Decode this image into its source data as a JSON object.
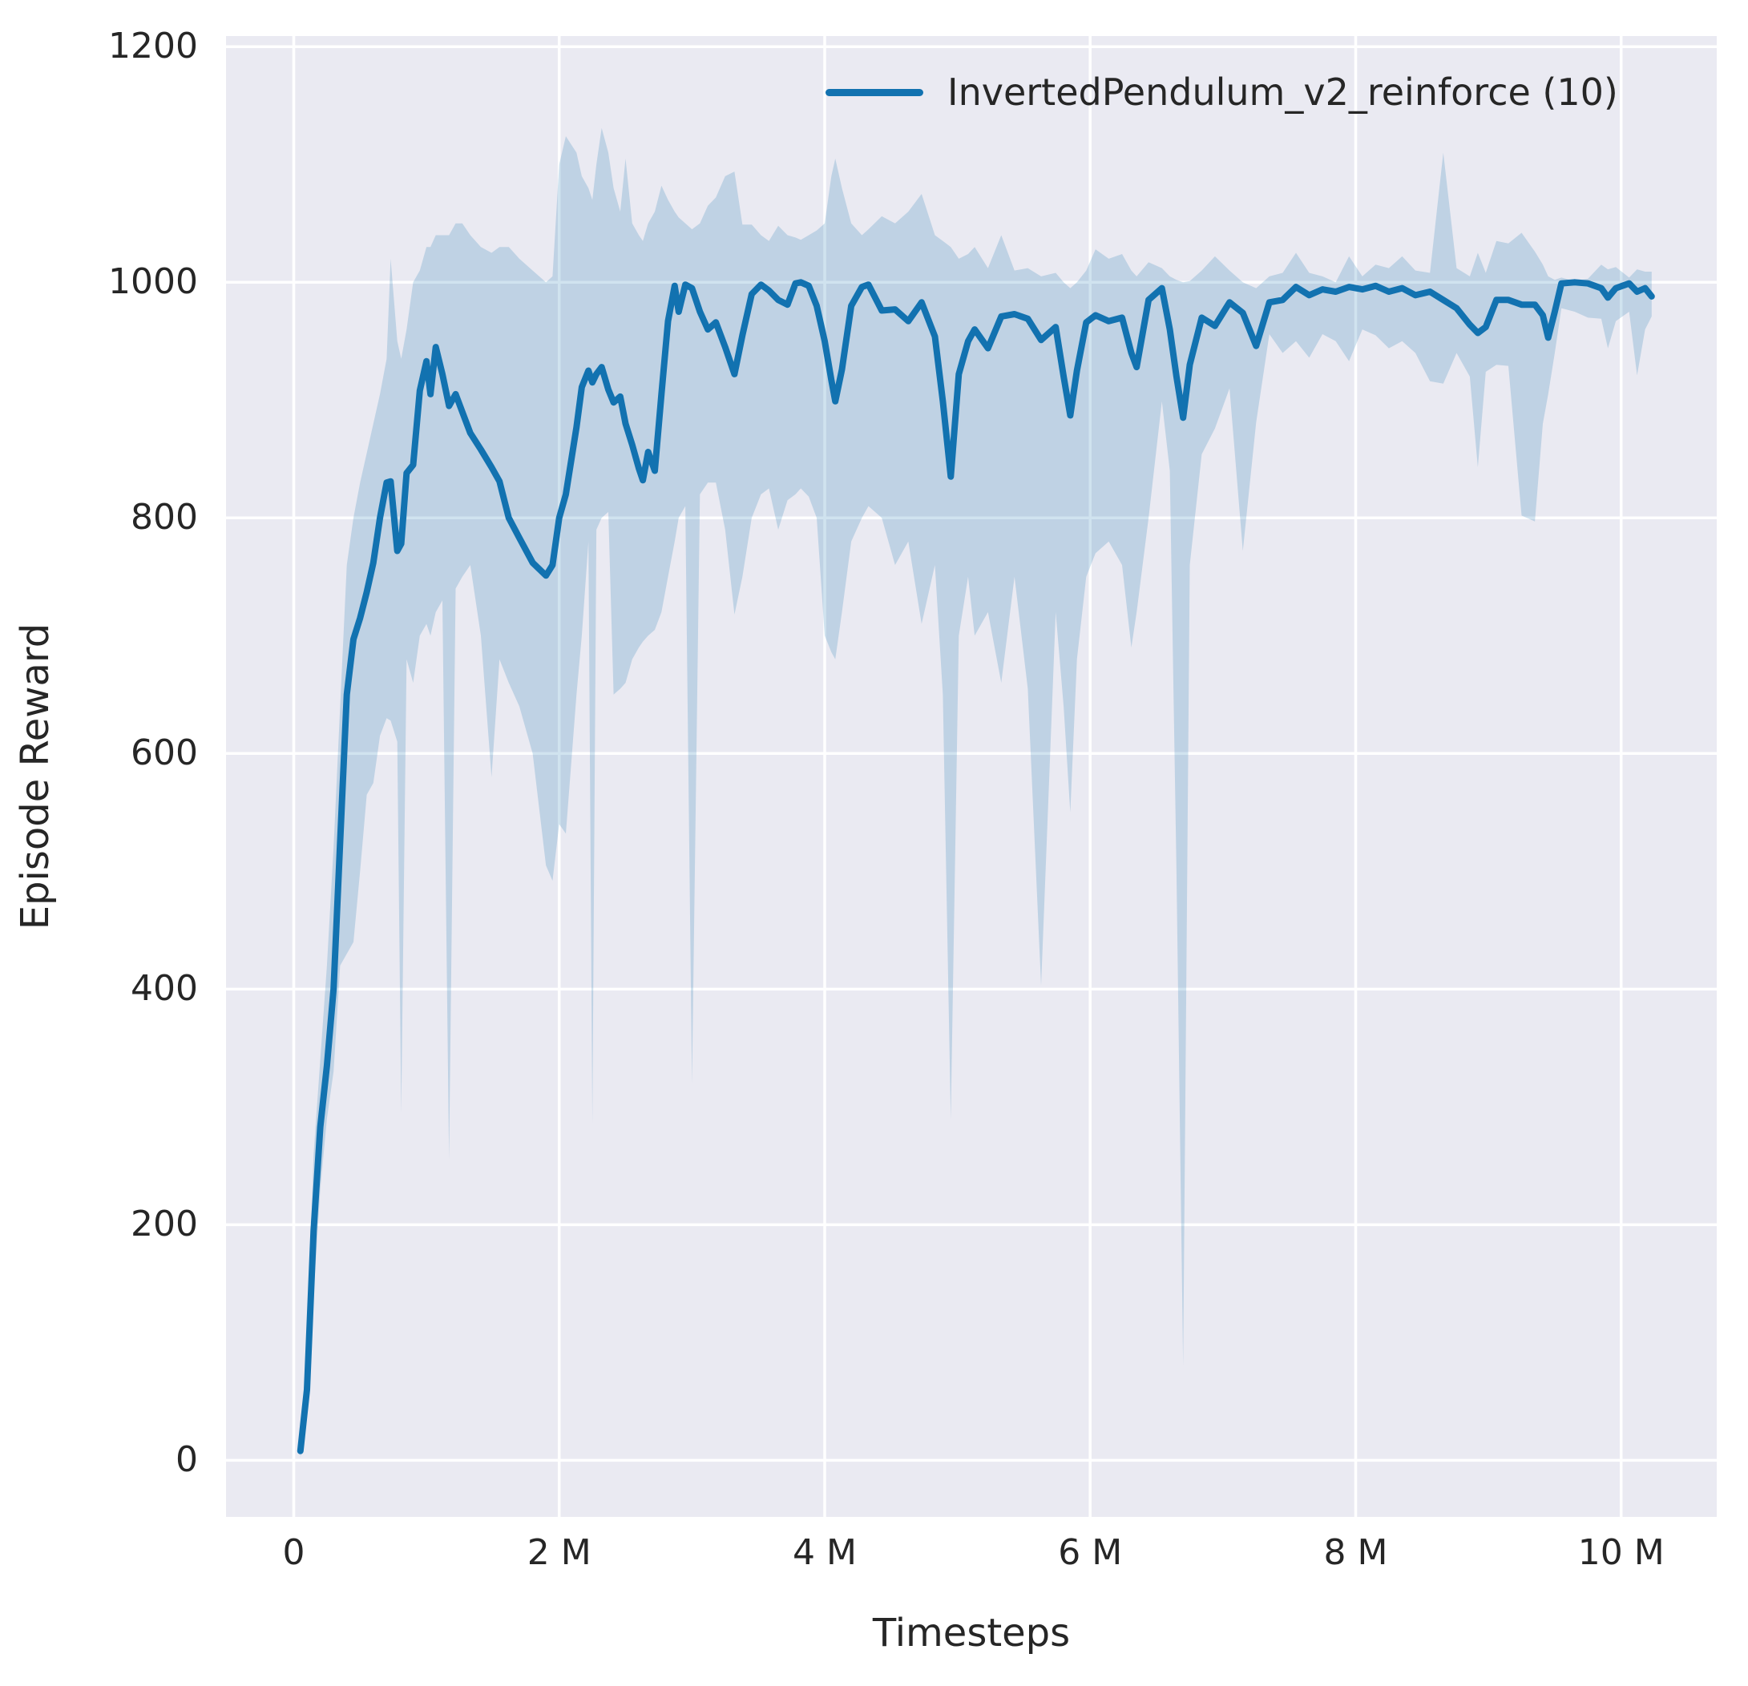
{
  "chart_data": {
    "type": "line",
    "title": "",
    "xlabel": "Timesteps",
    "ylabel": "Episode Reward",
    "grid": true,
    "legend_position": "upper right",
    "legend": {
      "label": "InvertedPendulum_v2_reinforce (10)"
    },
    "style": {
      "axes_background": "#eaeaf2",
      "figure_background": "#ffffff",
      "grid_color": "#ffffff",
      "line_color": "#1272b0",
      "band_color": "#1272b0",
      "band_opacity": 0.2,
      "text_color": "#262626",
      "line_width": 8
    },
    "xlim": [
      -0.51,
      10.72
    ],
    "ylim": [
      -48,
      1209
    ],
    "x_unit": "millions of timesteps",
    "x_ticks": [
      {
        "value": 0,
        "label": "0"
      },
      {
        "value": 2,
        "label": "2 M"
      },
      {
        "value": 4,
        "label": "4 M"
      },
      {
        "value": 6,
        "label": "6 M"
      },
      {
        "value": 8,
        "label": "8 M"
      },
      {
        "value": 10,
        "label": "10 M"
      }
    ],
    "y_ticks": [
      {
        "value": 0,
        "label": "0"
      },
      {
        "value": 200,
        "label": "200"
      },
      {
        "value": 400,
        "label": "400"
      },
      {
        "value": 600,
        "label": "600"
      },
      {
        "value": 800,
        "label": "800"
      },
      {
        "value": 1000,
        "label": "1000"
      },
      {
        "value": 1200,
        "label": "1200"
      }
    ],
    "series": [
      {
        "name": "InvertedPendulum_v2_reinforce (10)",
        "x": [
          0.05,
          0.1,
          0.15,
          0.2,
          0.25,
          0.3,
          0.35,
          0.4,
          0.45,
          0.5,
          0.55,
          0.6,
          0.65,
          0.7,
          0.73,
          0.78,
          0.81,
          0.85,
          0.9,
          0.95,
          1.0,
          1.03,
          1.07,
          1.12,
          1.17,
          1.22,
          1.27,
          1.33,
          1.41,
          1.49,
          1.55,
          1.62,
          1.7,
          1.8,
          1.9,
          1.95,
          2.0,
          2.05,
          2.13,
          2.17,
          2.22,
          2.25,
          2.28,
          2.32,
          2.37,
          2.41,
          2.46,
          2.5,
          2.55,
          2.6,
          2.63,
          2.67,
          2.72,
          2.77,
          2.82,
          2.87,
          2.9,
          2.95,
          3.0,
          3.06,
          3.12,
          3.18,
          3.25,
          3.32,
          3.38,
          3.45,
          3.52,
          3.58,
          3.65,
          3.72,
          3.78,
          3.82,
          3.88,
          3.94,
          4.0,
          4.05,
          4.08,
          4.13,
          4.2,
          4.28,
          4.33,
          4.43,
          4.53,
          4.63,
          4.73,
          4.83,
          4.89,
          4.95,
          5.01,
          5.08,
          5.13,
          5.23,
          5.33,
          5.43,
          5.53,
          5.63,
          5.74,
          5.8,
          5.85,
          5.9,
          5.97,
          6.04,
          6.14,
          6.24,
          6.31,
          6.35,
          6.44,
          6.54,
          6.6,
          6.65,
          6.7,
          6.75,
          6.84,
          6.94,
          7.05,
          7.15,
          7.25,
          7.35,
          7.45,
          7.55,
          7.65,
          7.75,
          7.85,
          7.95,
          8.05,
          8.15,
          8.25,
          8.35,
          8.45,
          8.56,
          8.66,
          8.76,
          8.86,
          8.92,
          8.98,
          9.06,
          9.15,
          9.25,
          9.35,
          9.41,
          9.45,
          9.5,
          9.55,
          9.65,
          9.75,
          9.85,
          9.9,
          9.96,
          10.06,
          10.12,
          10.18,
          10.23
        ],
        "mean": [
          8,
          60,
          195,
          283,
          335,
          400,
          525,
          650,
          697,
          715,
          737,
          762,
          800,
          830,
          831,
          772,
          778,
          838,
          845,
          908,
          933,
          905,
          945,
          922,
          895,
          905,
          890,
          872,
          858,
          843,
          831,
          800,
          783,
          762,
          751,
          760,
          800,
          820,
          877,
          911,
          925,
          915,
          922,
          928,
          909,
          898,
          903,
          880,
          862,
          842,
          832,
          856,
          840,
          905,
          967,
          997,
          975,
          998,
          995,
          975,
          960,
          966,
          945,
          922,
          955,
          990,
          998,
          993,
          985,
          981,
          999,
          1000,
          997,
          980,
          950,
          917,
          899,
          926,
          980,
          996,
          998,
          976,
          977,
          967,
          983,
          954,
          899,
          835,
          922,
          950,
          960,
          944,
          971,
          973,
          969,
          951,
          962,
          920,
          887,
          925,
          966,
          972,
          967,
          970,
          940,
          928,
          985,
          995,
          960,
          920,
          885,
          930,
          970,
          963,
          983,
          974,
          946,
          983,
          985,
          996,
          989,
          994,
          992,
          996,
          994,
          997,
          992,
          995,
          989,
          992,
          985,
          978,
          964,
          957,
          962,
          985,
          985,
          981,
          981,
          972,
          953,
          975,
          999,
          1000,
          999,
          995,
          987,
          995,
          999,
          992,
          995,
          988
        ],
        "band_lower": [
          2,
          35,
          140,
          230,
          290,
          330,
          420,
          430,
          440,
          500,
          565,
          575,
          615,
          630,
          628,
          610,
          295,
          680,
          660,
          700,
          710,
          700,
          720,
          730,
          255,
          740,
          750,
          760,
          700,
          580,
          680,
          660,
          640,
          600,
          505,
          492,
          540,
          532,
          650,
          700,
          780,
          285,
          790,
          800,
          805,
          650,
          655,
          660,
          680,
          690,
          695,
          700,
          705,
          720,
          750,
          780,
          800,
          810,
          320,
          820,
          830,
          830,
          790,
          718,
          750,
          800,
          820,
          825,
          790,
          815,
          820,
          825,
          818,
          800,
          700,
          686,
          680,
          720,
          780,
          800,
          810,
          800,
          760,
          780,
          710,
          760,
          650,
          290,
          700,
          750,
          700,
          720,
          660,
          750,
          655,
          403,
          720,
          640,
          550,
          680,
          750,
          770,
          780,
          760,
          690,
          720,
          800,
          899,
          840,
          500,
          80,
          760,
          854,
          876,
          910,
          772,
          881,
          956,
          940,
          950,
          936,
          956,
          950,
          933,
          960,
          955,
          944,
          950,
          940,
          916,
          914,
          940,
          920,
          843,
          924,
          930,
          929,
          802,
          797,
          880,
          905,
          940,
          978,
          975,
          970,
          969,
          944,
          967,
          975,
          921,
          960,
          971
        ],
        "band_upper": [
          20,
          95,
          260,
          340,
          420,
          520,
          640,
          760,
          800,
          830,
          855,
          880,
          905,
          935,
          1020,
          950,
          935,
          960,
          1000,
          1010,
          1030,
          1030,
          1040,
          1040,
          1040,
          1050,
          1050,
          1040,
          1030,
          1025,
          1030,
          1030,
          1020,
          1010,
          1000,
          1005,
          1100,
          1124,
          1110,
          1090,
          1080,
          1070,
          1100,
          1131,
          1110,
          1080,
          1060,
          1105,
          1050,
          1040,
          1035,
          1050,
          1060,
          1082,
          1070,
          1060,
          1055,
          1050,
          1045,
          1050,
          1065,
          1072,
          1090,
          1094,
          1049,
          1049,
          1040,
          1035,
          1048,
          1040,
          1038,
          1036,
          1040,
          1044,
          1050,
          1090,
          1105,
          1080,
          1050,
          1040,
          1045,
          1056,
          1050,
          1060,
          1075,
          1040,
          1035,
          1030,
          1020,
          1024,
          1030,
          1012,
          1040,
          1010,
          1012,
          1005,
          1008,
          1000,
          995,
          1000,
          1010,
          1028,
          1020,
          1024,
          1010,
          1005,
          1017,
          1012,
          1005,
          1002,
          1000,
          1001,
          1010,
          1022,
          1010,
          1000,
          995,
          1005,
          1008,
          1025,
          1008,
          1005,
          1000,
          1022,
          1005,
          1015,
          1012,
          1022,
          1010,
          1008,
          1110,
          1012,
          1005,
          1025,
          1008,
          1035,
          1033,
          1042,
          1026,
          1015,
          1005,
          1002,
          1004,
          1001,
          1003,
          1015,
          1011,
          1013,
          1004,
          1011,
          1009,
          1009
        ]
      }
    ]
  }
}
